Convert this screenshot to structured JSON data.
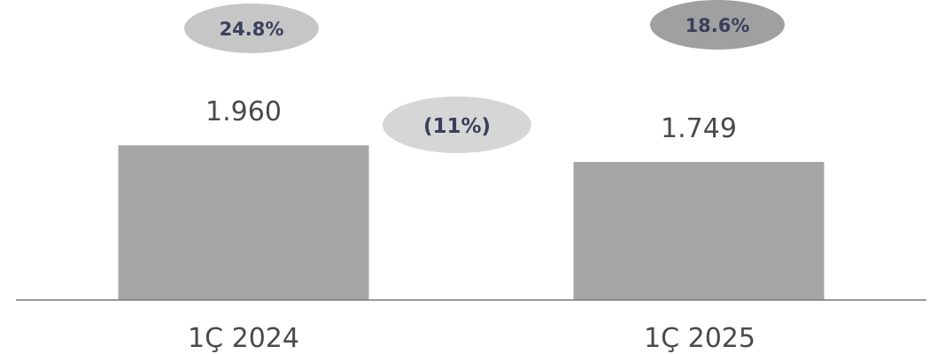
{
  "chart_data": {
    "type": "bar",
    "categories": [
      "1Ç 2024",
      "1Ç 2025"
    ],
    "values": [
      1960,
      1749
    ],
    "value_labels": [
      "1.960",
      "1.749"
    ],
    "ylim": [
      0,
      3800
    ],
    "title": "",
    "xlabel": "",
    "ylabel": "",
    "grid": false,
    "bar_color": "#a6a6a6",
    "margin_labels": [
      "24.8%",
      "18.6%"
    ],
    "margin_colors": [
      "#c6c6c6",
      "#a0a0a0"
    ],
    "change_label": "(11%)",
    "change_color": "#d6d6d6",
    "axis_color": "#7a7a7a"
  }
}
